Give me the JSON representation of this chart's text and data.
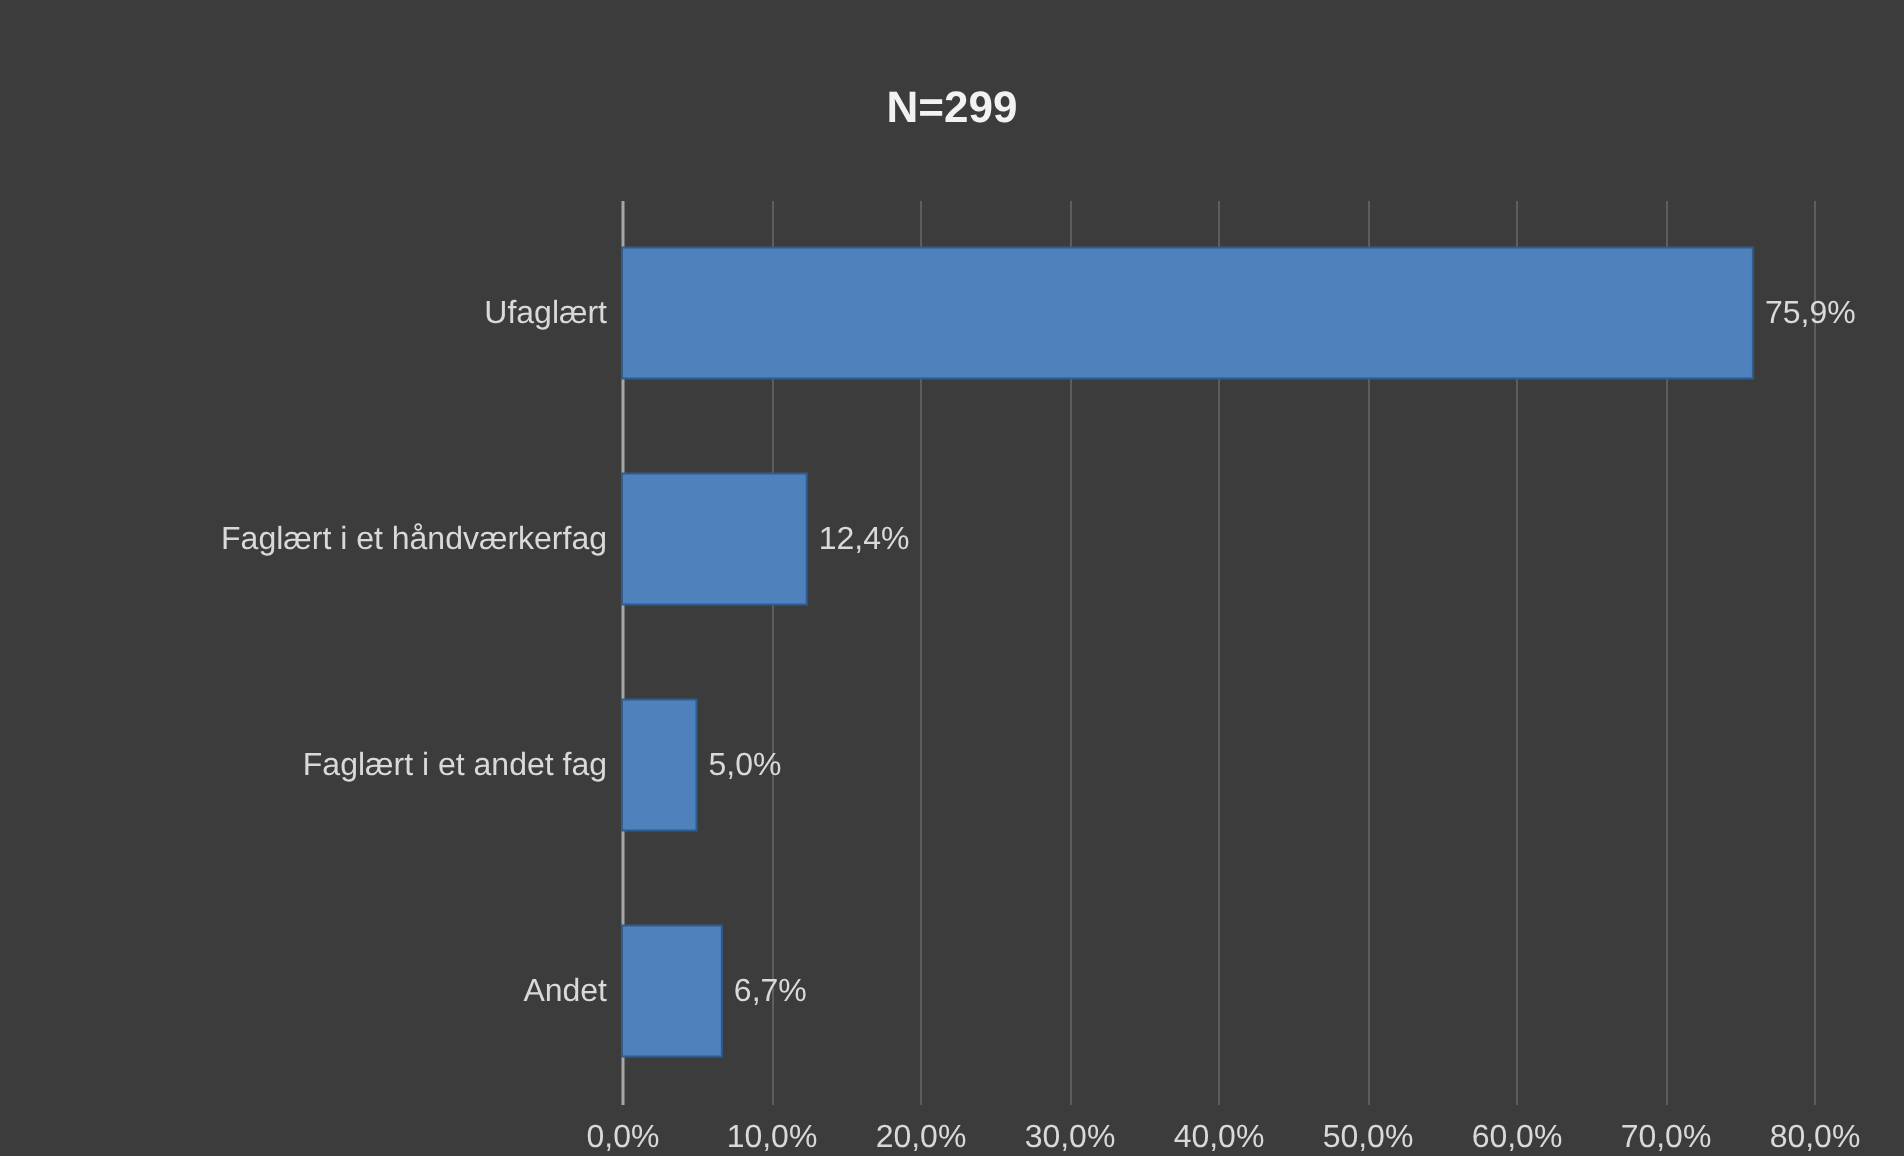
{
  "chart_data": {
    "type": "bar",
    "orientation": "horizontal",
    "title": "N=299",
    "categories": [
      "Ufaglært",
      "Faglært i et håndværkerfag",
      "Faglært i et andet fag",
      "Andet"
    ],
    "series": [
      {
        "color": "#4f81bd",
        "values": [
          75.9,
          12.4,
          5.0,
          6.7
        ],
        "value_labels": [
          "75,9%",
          "12,4%",
          "5,0%",
          "6,7%"
        ]
      }
    ],
    "xlim": [
      0,
      80
    ],
    "xticks": [
      {
        "value": 0,
        "label": "0,0%"
      },
      {
        "value": 10,
        "label": "10,0%"
      },
      {
        "value": 20,
        "label": "20,0%"
      },
      {
        "value": 30,
        "label": "30,0%"
      },
      {
        "value": 40,
        "label": "40,0%"
      },
      {
        "value": 50,
        "label": "50,0%"
      },
      {
        "value": 60,
        "label": "60,0%"
      },
      {
        "value": 70,
        "label": "70,0%"
      },
      {
        "value": 80,
        "label": "80,0%"
      }
    ],
    "grid": "x"
  }
}
